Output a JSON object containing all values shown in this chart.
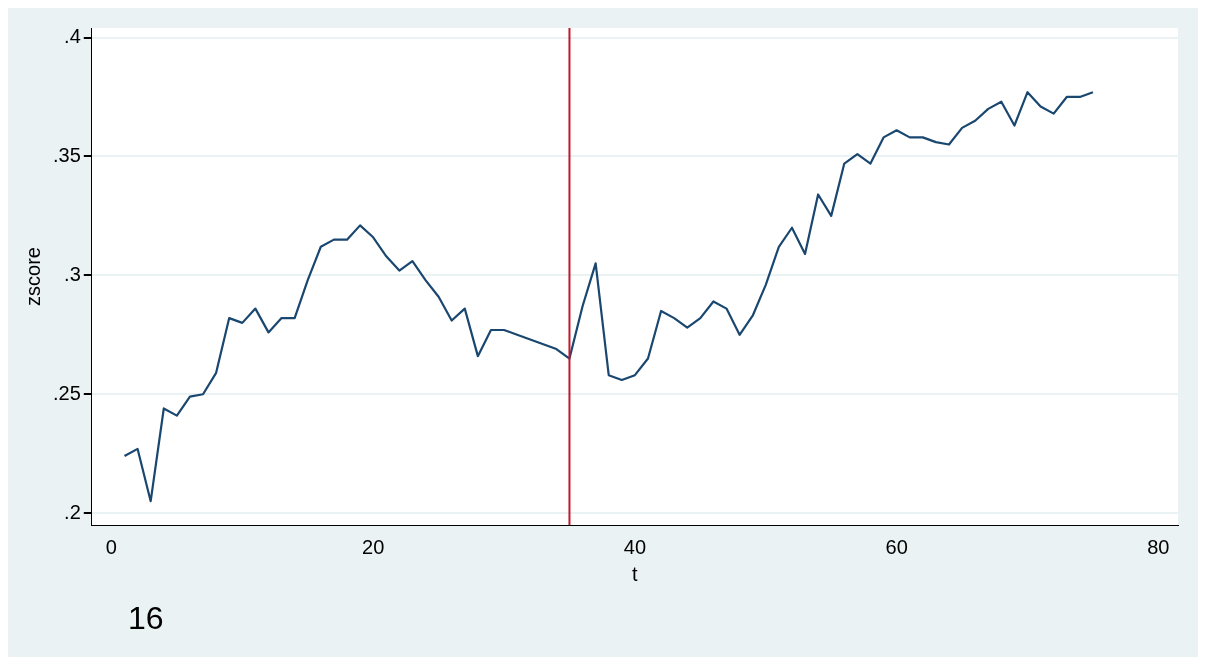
{
  "chart_data": {
    "type": "line",
    "xlabel": "t",
    "ylabel": "zscore",
    "x": [
      1,
      2,
      3,
      4,
      5,
      6,
      7,
      8,
      9,
      10,
      11,
      12,
      13,
      14,
      15,
      16,
      17,
      18,
      19,
      20,
      21,
      22,
      23,
      24,
      25,
      26,
      27,
      28,
      29,
      30,
      31,
      32,
      33,
      34,
      35,
      36,
      37,
      38,
      39,
      40,
      41,
      42,
      43,
      44,
      45,
      46,
      47,
      48,
      49,
      50,
      51,
      52,
      53,
      54,
      55,
      56,
      57,
      58,
      59,
      60,
      61,
      62,
      63,
      64,
      65,
      66,
      67,
      68,
      69,
      70,
      71,
      72,
      73,
      74,
      75
    ],
    "series": [
      {
        "color": "#1a476f",
        "values": [
          0.224,
          0.227,
          0.205,
          0.244,
          0.241,
          0.249,
          0.25,
          0.259,
          0.282,
          0.28,
          0.286,
          0.276,
          0.282,
          0.282,
          0.298,
          0.312,
          0.315,
          0.315,
          0.321,
          0.316,
          0.308,
          0.302,
          0.306,
          0.298,
          0.291,
          0.281,
          0.286,
          0.266,
          0.277,
          0.277,
          0.275,
          0.273,
          0.271,
          0.269,
          0.265,
          0.287,
          0.305,
          0.258,
          0.256,
          0.258,
          0.265,
          0.285,
          0.282,
          0.278,
          0.282,
          0.289,
          0.286,
          0.275,
          0.283,
          0.296,
          0.312,
          0.32,
          0.309,
          0.334,
          0.325,
          0.347,
          0.351,
          0.347,
          0.358,
          0.361,
          0.358,
          0.358,
          0.356,
          0.355,
          0.362,
          0.365,
          0.37,
          0.373,
          0.363,
          0.377,
          0.371,
          0.368,
          0.375,
          0.375,
          0.377
        ]
      }
    ],
    "xlim": [
      -1.5,
      81.5
    ],
    "xticks": [
      0,
      20,
      40,
      60,
      80
    ],
    "ylim": [
      0.195,
      0.404
    ],
    "yticks": [
      {
        "value": 0.2,
        "label": ".2"
      },
      {
        "value": 0.25,
        "label": ".25"
      },
      {
        "value": 0.3,
        "label": ".3"
      },
      {
        "value": 0.35,
        "label": ".35"
      },
      {
        "value": 0.4,
        "label": ".4"
      }
    ],
    "ref_lines": [
      {
        "axis": "x",
        "value": 35,
        "color": "#c0182c"
      }
    ],
    "annotations": [
      "16"
    ],
    "grid": "y",
    "legend": false,
    "marker": "none",
    "line_style": "solid"
  }
}
